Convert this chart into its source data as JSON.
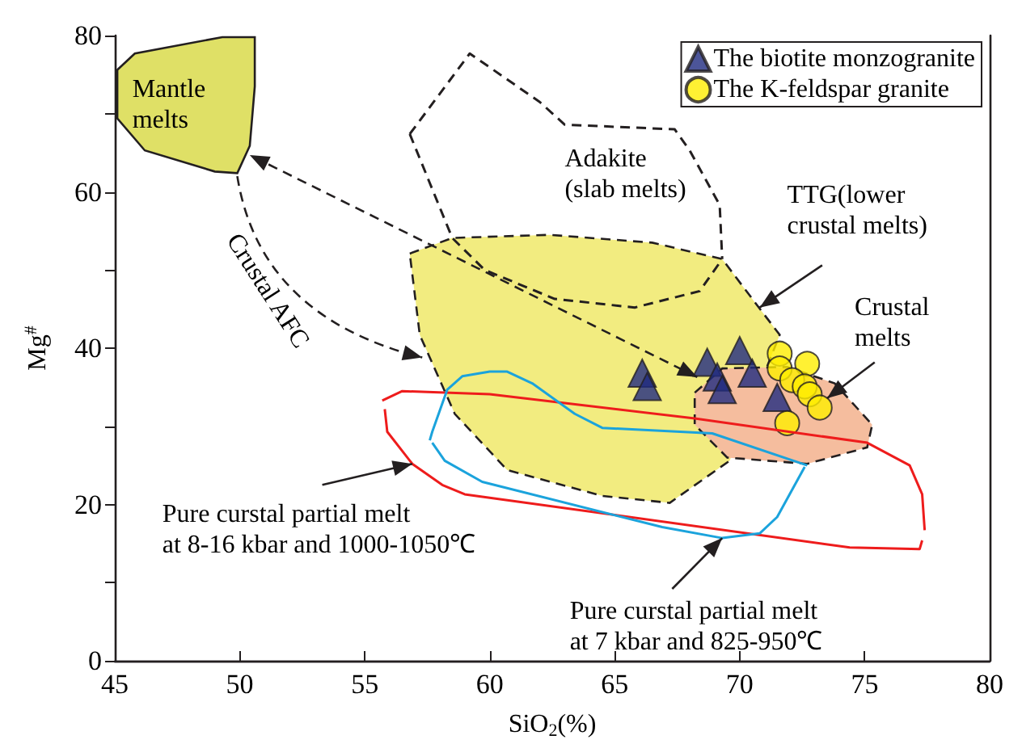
{
  "chart_data": {
    "type": "scatter",
    "xlabel": "SiO$_{2}$(%)",
    "ylabel": "Mg$^{#}$",
    "xlim": [
      45,
      80
    ],
    "xticks": [
      45,
      50,
      55,
      60,
      65,
      70,
      75,
      80
    ],
    "ylim": [
      0,
      80
    ],
    "yticks": [
      0,
      {
        "value": 10,
        "label": null
      },
      20,
      {
        "value": 30,
        "label": null
      },
      40,
      {
        "value": 50,
        "label": null
      },
      60,
      {
        "value": 70,
        "label": null
      },
      80
    ],
    "grid": false,
    "legend": "top right",
    "series": [
      {
        "type": "area",
        "color": "#f2ec80",
        "line_style": "dashed",
        "x": [
          56.8,
          58.5,
          62.4,
          66.5,
          69.3,
          70.6,
          71.6,
          69.6,
          67.2,
          64.5,
          60.7,
          58.6,
          57.2,
          56.8
        ],
        "values": [
          52.1,
          54.1,
          54.5,
          53.5,
          51.4,
          45.9,
          41.7,
          25.6,
          20.2,
          21.1,
          24.4,
          31.6,
          41.7,
          52.1
        ]
      },
      {
        "type": "line",
        "color": "#ee1c1c",
        "line_style": "solid",
        "x": [
          55.7,
          56.5,
          60.0,
          68.2,
          75.1,
          76.8,
          77.3,
          77.4
        ],
        "values": [
          33.3,
          34.5,
          34.1,
          31.0,
          27.9,
          25.0,
          21.3,
          16.7
        ]
      },
      {
        "type": "line",
        "color": "#ee1c1c",
        "line_style": "solid",
        "x": [
          55.8,
          55.9,
          56.9,
          58.1,
          59.0,
          74.4,
          77.2,
          77.3
        ],
        "values": [
          32.2,
          29.3,
          25.2,
          22.5,
          21.3,
          14.5,
          14.3,
          15.4
        ]
      },
      {
        "type": "line",
        "color": "#1ba3dc",
        "line_style": "solid",
        "x": [
          57.6,
          57.7,
          58.3,
          58.9,
          60.0,
          60.7,
          61.7,
          63.4,
          64.5,
          68.9,
          72.7
        ],
        "values": [
          28.2,
          29.3,
          34.7,
          36.4,
          37.0,
          37.0,
          35.5,
          31.6,
          29.8,
          29.1,
          25.0
        ]
      },
      {
        "type": "line",
        "color": "#1ba3dc",
        "line_style": "solid",
        "x": [
          57.7,
          58.2,
          59.7,
          66.9,
          69.3,
          70.8,
          71.5,
          72.6
        ],
        "values": [
          27.9,
          25.6,
          22.9,
          17.1,
          15.7,
          16.3,
          18.4,
          24.8
        ]
      },
      {
        "type": "line",
        "color": "#231f20",
        "line_style": "dashed",
        "x": [
          56.8,
          59.2,
          62.0,
          63.0,
          67.4,
          68.0,
          69.2,
          69.3
        ],
        "values": [
          67.4,
          77.7,
          71.5,
          68.6,
          68.0,
          65.3,
          58.3,
          51.4
        ]
      },
      {
        "type": "line",
        "color": "#231f20",
        "line_style": "dashed",
        "x": [
          56.8,
          58.5,
          59.8,
          62.6,
          65.8,
          68.4,
          69.3
        ],
        "values": [
          67.4,
          54.1,
          50.0,
          46.3,
          45.2,
          47.3,
          51.4
        ]
      },
      {
        "type": "area",
        "color": "#f5bd9e",
        "line_style": "dashed",
        "x": [
          68.2,
          69.3,
          71.9,
          73.8,
          75.3,
          75.1,
          72.7,
          69.5,
          68.2,
          68.2
        ],
        "values": [
          34.3,
          37.4,
          37.6,
          35.5,
          30.2,
          27.3,
          25.2,
          26.0,
          30.2,
          34.3
        ]
      },
      {
        "type": "area",
        "color": "#dfe066",
        "line_style": "solid",
        "x": [
          45.1,
          45.8,
          49.3,
          50.6,
          50.6,
          50.4,
          49.9,
          49.0,
          46.2,
          45.1,
          45.1
        ],
        "values": [
          75.6,
          77.7,
          79.8,
          79.8,
          73.5,
          65.9,
          62.4,
          62.6,
          65.3,
          69.4,
          75.6
        ]
      },
      {
        "name": "The biotite monzogranite",
        "color": "#1f2a80",
        "marker": "triangle",
        "x": [
          66.1,
          66.3,
          68.7,
          69.1,
          69.3,
          70.0,
          70.5,
          71.5
        ],
        "values": [
          36.8,
          35.1,
          38.2,
          36.3,
          34.7,
          39.7,
          36.8,
          33.7
        ]
      },
      {
        "name": "The K-feldspar granite",
        "color": "#ffee00",
        "marker": "circle",
        "x": [
          71.6,
          72.7,
          71.6,
          72.1,
          72.6,
          72.8,
          73.2,
          71.9
        ],
        "values": [
          39.3,
          38.0,
          37.4,
          35.9,
          35.1,
          34.1,
          32.4,
          30.4
        ]
      }
    ],
    "annotations": [
      "Mantle\nmelts",
      "Adakite\n(slab melts)",
      "TTG(lower\ncrustal melts)",
      "Crustal\nmelts",
      "Crustal AFC",
      {
        "text": "Pure curstal partial melt\nat 8-16 kbar and 1000-1050℃",
        "x": 56.9,
        "y": 25.2
      },
      {
        "text": "Pure curstal partial melt\nat 7 kbar and 825-950℃",
        "x": 69.3,
        "y": 15.7
      }
    ]
  }
}
